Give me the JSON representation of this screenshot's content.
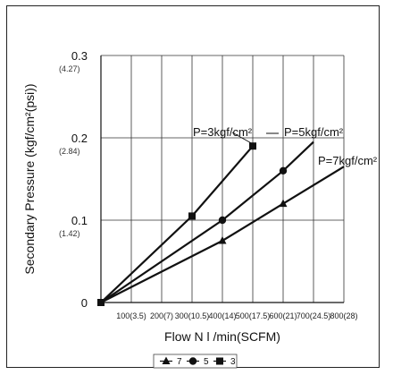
{
  "chart_data": {
    "type": "line",
    "xlabel": "Flow N l /min(SCFM)",
    "ylabel": "Secondary Pressure (kgf/cm²(psi))",
    "xlim": [
      0,
      800
    ],
    "ylim": [
      0,
      0.3
    ],
    "x_ticks": [
      {
        "value": 100,
        "label": "100(3.5)"
      },
      {
        "value": 200,
        "label": "200(7)"
      },
      {
        "value": 300,
        "label": "300(10.5)"
      },
      {
        "value": 400,
        "label": "400(14)"
      },
      {
        "value": 500,
        "label": "500(17.5)"
      },
      {
        "value": 600,
        "label": "600(21)"
      },
      {
        "value": 700,
        "label": "700(24.5)"
      },
      {
        "value": 800,
        "label": "800(28)"
      }
    ],
    "y_ticks": [
      {
        "value": 0,
        "label": "0",
        "sub": ""
      },
      {
        "value": 0.1,
        "label": "0.1",
        "sub": "(1.42)"
      },
      {
        "value": 0.2,
        "label": "0.2",
        "sub": "(2.84)"
      },
      {
        "value": 0.3,
        "label": "0.3",
        "sub": "(4.27)"
      }
    ],
    "grid": true,
    "series": [
      {
        "name": "3",
        "marker": "square",
        "color": "#111111",
        "curve_label": "P=3kgf/cm²",
        "x": [
          0,
          300,
          500
        ],
        "y": [
          0,
          0.105,
          0.19
        ]
      },
      {
        "name": "5",
        "marker": "circle",
        "color": "#111111",
        "curve_label": "P=5kgf/cm²",
        "x": [
          0,
          400,
          600,
          700
        ],
        "y": [
          0,
          0.1,
          0.16,
          0.195
        ]
      },
      {
        "name": "7",
        "marker": "triangle",
        "color": "#111111",
        "curve_label": "P=7kgf/cm²",
        "x": [
          0,
          400,
          600,
          800
        ],
        "y": [
          0,
          0.075,
          0.12,
          0.165
        ]
      }
    ],
    "legend": {
      "placement": "bottom-center",
      "order": [
        "7",
        "5",
        "3"
      ]
    }
  }
}
